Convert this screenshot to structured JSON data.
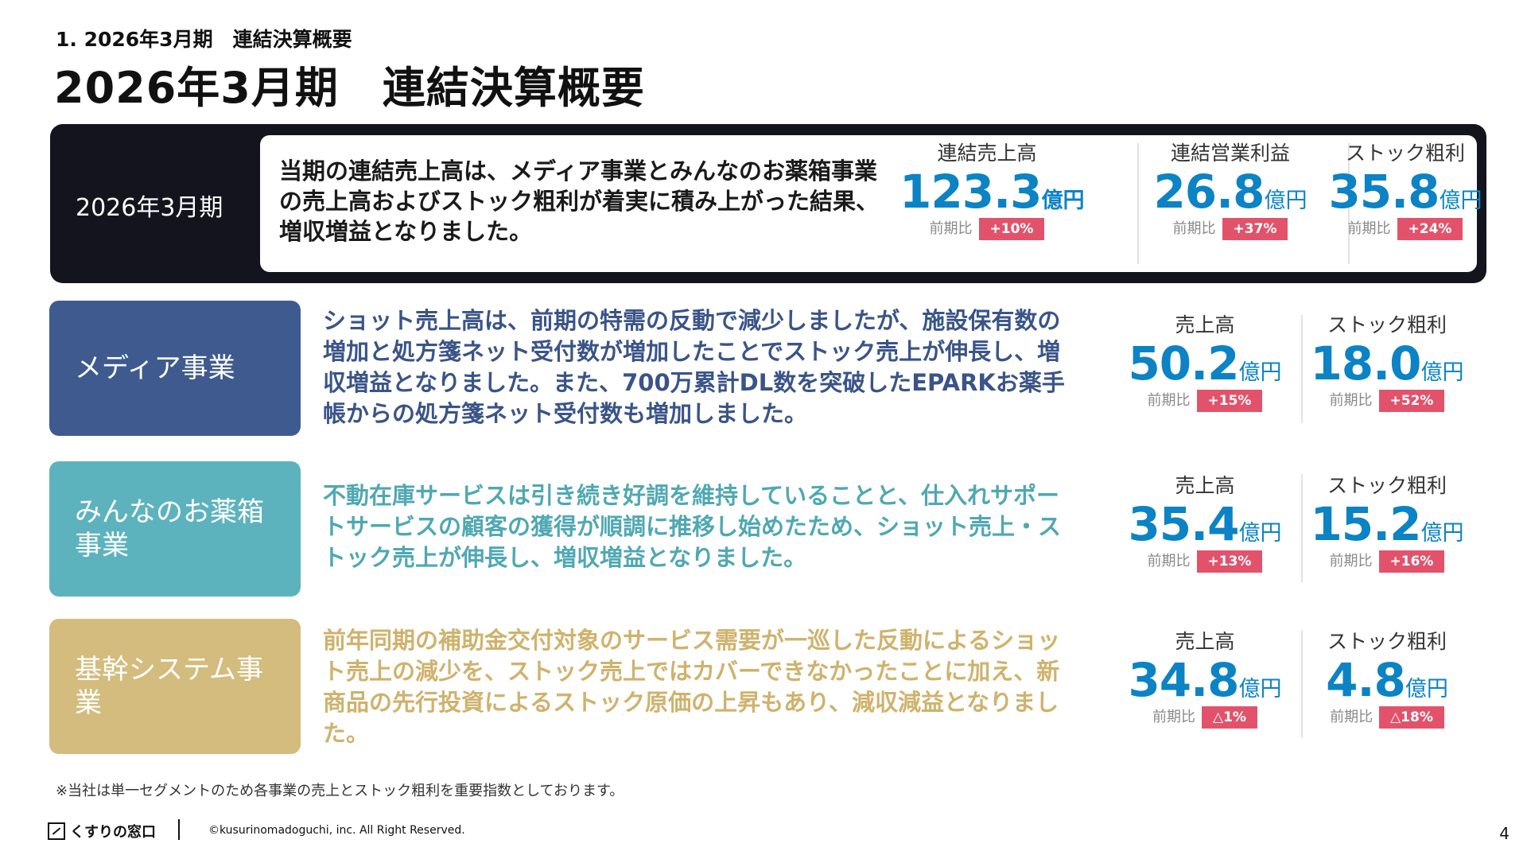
{
  "header": {
    "breadcrumb": "1. 2026年3月期　連結決算概要",
    "title": "2026年3月期　連結決算概要"
  },
  "summary": {
    "period_label": "2026年3月期",
    "text": "当期の連結売上高は、メディア事業とみんなのお薬箱事業の売上高およびストック粗利が着実に積み上がった結果、増収増益となりました。",
    "metrics": [
      {
        "label": "連結売上高",
        "value": "123.3",
        "unit": "億円",
        "compare_label": "前期比",
        "change": "+10%"
      },
      {
        "label": "連結営業利益",
        "value": "26.8",
        "unit": "億円",
        "compare_label": "前期比",
        "change": "+37%"
      },
      {
        "label": "ストック粗利",
        "value": "35.8",
        "unit": "億円",
        "compare_label": "前期比",
        "change": "+24%"
      }
    ]
  },
  "segments": [
    {
      "name": "メディア事業",
      "color": "#3f5a8f",
      "text_color": "#3a5488",
      "text": "ショット売上高は、前期の特需の反動で減少しましたが、施設保有数の増加と処方箋ネット受付数が増加したことでストック売上が伸長し、増収増益となりました。また、700万累計DL数を突破したEPARKお薬手帳からの処方箋ネット受付数も増加しました。",
      "metrics": [
        {
          "label": "売上高",
          "value": "50.2",
          "unit": "億円",
          "compare_label": "前期比",
          "change": "+15%"
        },
        {
          "label": "ストック粗利",
          "value": "18.0",
          "unit": "億円",
          "compare_label": "前期比",
          "change": "+52%"
        }
      ]
    },
    {
      "name": "みんなのお薬箱事業",
      "color": "#5db3bd",
      "text_color": "#4fa8b3",
      "text": "不動在庫サービスは引き続き好調を維持していることと、仕入れサポートサービスの顧客の獲得が順調に推移し始めたため、ショット売上・ストック売上が伸長し、増収増益となりました。",
      "metrics": [
        {
          "label": "売上高",
          "value": "35.4",
          "unit": "億円",
          "compare_label": "前期比",
          "change": "+13%"
        },
        {
          "label": "ストック粗利",
          "value": "15.2",
          "unit": "億円",
          "compare_label": "前期比",
          "change": "+16%"
        }
      ]
    },
    {
      "name": "基幹システム事業",
      "color": "#d4bc7e",
      "text_color": "#cfb26c",
      "text": "前年同期の補助金交付対象のサービス需要が一巡した反動によるショット売上の減少を、ストック売上ではカバーできなかったことに加え、新商品の先行投資によるストック原価の上昇もあり、減収減益となりました。",
      "metrics": [
        {
          "label": "売上高",
          "value": "34.8",
          "unit": "億円",
          "compare_label": "前期比",
          "change": "△1%"
        },
        {
          "label": "ストック粗利",
          "value": "4.8",
          "unit": "億円",
          "compare_label": "前期比",
          "change": "△18%"
        }
      ]
    }
  ],
  "footnote": "※当社は単一セグメントのため各事業の売上とストック粗利を重要指数としております。",
  "footer": {
    "logo_text": "くすりの窓口",
    "copyright": "©kusurinomadoguchi, inc. All Right Reserved.",
    "page_number": "4"
  }
}
